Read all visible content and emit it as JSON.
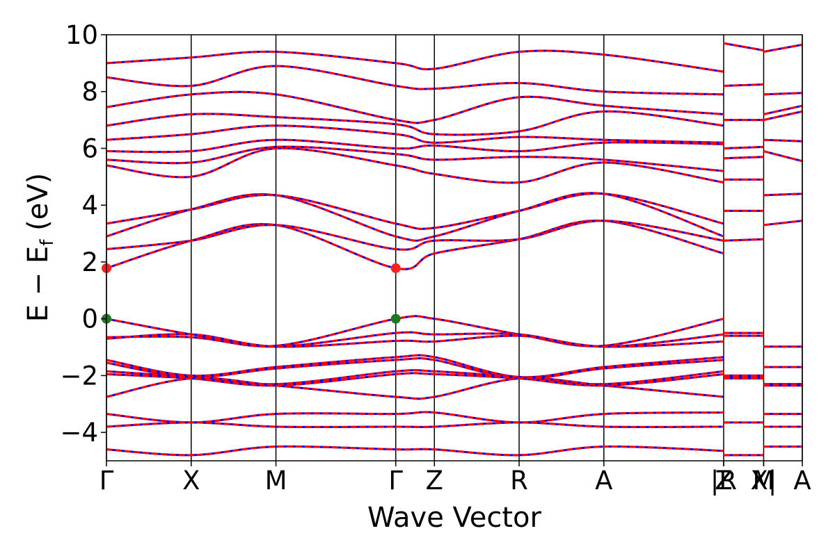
{
  "chart_data": {
    "type": "line",
    "xlabel": "Wave Vector",
    "ylabel_main": "E − E",
    "ylabel_sub": "f",
    "ylabel_unit": " (eV)",
    "ylim": [
      -5,
      10
    ],
    "yticks": [
      -4,
      -2,
      0,
      2,
      4,
      6,
      8,
      10
    ],
    "ytick_labels": [
      "−4",
      "−2",
      "0",
      "2",
      "4",
      "6",
      "8",
      "10"
    ],
    "grid": false,
    "legend": "none",
    "kpath": [
      {
        "label": "Γ",
        "x": 0.0
      },
      {
        "label": "X",
        "x": 0.5
      },
      {
        "label": "M",
        "x": 1.0
      },
      {
        "label": "Γ",
        "x": 1.707
      },
      {
        "label": "Z",
        "x": 1.935
      },
      {
        "label": "R",
        "x": 2.435
      },
      {
        "label": "A",
        "x": 2.935
      },
      {
        "label": "Z",
        "x": 3.642
      },
      {
        "label": "|R",
        "x": 3.642
      },
      {
        "label": "X|",
        "x": 3.878
      },
      {
        "label": "M",
        "x": 3.878
      },
      {
        "label": "A",
        "x": 4.106
      }
    ],
    "segments": [
      [
        0.0,
        3.642
      ],
      [
        3.642,
        3.878
      ],
      [
        3.878,
        4.106
      ]
    ],
    "band_colors": {
      "red": "#ff0000",
      "blue": "#0000ff",
      "vertical": "#000000"
    },
    "cbm": [
      {
        "x": 0.0,
        "y": 1.78
      },
      {
        "x": 1.707,
        "y": 1.78
      }
    ],
    "vbm": [
      {
        "x": 0.0,
        "y": 0.0
      },
      {
        "x": 1.707,
        "y": 0.0
      }
    ],
    "marker_colors": {
      "cbm": "#ff2020",
      "vbm": "#1f7a1f"
    },
    "series": [
      {
        "x": [
          0.0,
          0.5,
          1.0,
          1.707,
          1.935,
          2.435,
          2.935,
          3.642
        ],
        "values": [
          0.0,
          -0.55,
          -0.95,
          0.0,
          0.0,
          -0.55,
          -0.95,
          0.0
        ]
      },
      {
        "x": [
          0.0,
          0.5,
          1.0,
          1.707,
          1.935,
          2.435,
          2.935,
          3.642
        ],
        "values": [
          -0.65,
          -0.65,
          -0.98,
          -0.5,
          -0.55,
          -0.55,
          -0.98,
          -0.55
        ]
      },
      {
        "x": [
          0.0,
          0.5,
          1.0,
          1.707,
          1.935,
          2.435,
          2.935,
          3.642
        ],
        "values": [
          -0.7,
          -0.55,
          -0.98,
          -0.78,
          -0.8,
          -0.6,
          -0.98,
          -0.8
        ]
      },
      {
        "x": [
          0.0,
          0.5,
          1.0,
          1.707,
          1.935,
          2.435,
          2.935,
          3.642
        ],
        "values": [
          -1.45,
          -2.0,
          -1.7,
          -1.35,
          -1.35,
          -2.05,
          -1.7,
          -1.35
        ]
      },
      {
        "x": [
          0.0,
          0.5,
          1.0,
          1.707,
          1.935,
          2.435,
          2.935,
          3.642
        ],
        "values": [
          -1.55,
          -2.05,
          -1.75,
          -1.45,
          -1.45,
          -2.1,
          -1.75,
          -1.45
        ]
      },
      {
        "x": [
          0.0,
          0.5,
          1.0,
          1.707,
          1.935,
          2.435,
          2.935,
          3.642
        ],
        "values": [
          -1.85,
          -2.05,
          -2.3,
          -1.85,
          -1.85,
          -2.05,
          -2.3,
          -1.85
        ]
      },
      {
        "x": [
          0.0,
          0.5,
          1.0,
          1.707,
          1.935,
          2.435,
          2.935,
          3.642
        ],
        "values": [
          -1.95,
          -2.1,
          -2.35,
          -1.95,
          -1.95,
          -2.1,
          -2.35,
          -1.95
        ]
      },
      {
        "x": [
          0.0,
          0.5,
          1.0,
          1.707,
          1.935,
          2.435,
          2.935,
          3.642
        ],
        "values": [
          -2.75,
          -2.1,
          -2.35,
          -2.75,
          -2.75,
          -2.1,
          -2.35,
          -2.75
        ]
      },
      {
        "x": [
          0.0,
          0.5,
          1.0,
          1.707,
          1.935,
          2.435,
          2.935,
          3.642
        ],
        "values": [
          -3.35,
          -3.65,
          -3.35,
          -3.35,
          -3.3,
          -3.65,
          -3.35,
          -3.3
        ]
      },
      {
        "x": [
          0.0,
          0.5,
          1.0,
          1.707,
          1.935,
          2.435,
          2.935,
          3.642
        ],
        "values": [
          -3.8,
          -3.65,
          -3.8,
          -3.8,
          -3.8,
          -3.65,
          -3.8,
          -3.8
        ]
      },
      {
        "x": [
          0.0,
          0.5,
          1.0,
          1.707,
          1.935,
          2.435,
          2.935,
          3.642
        ],
        "values": [
          -4.6,
          -4.8,
          -4.5,
          -4.6,
          -4.6,
          -4.8,
          -4.5,
          -4.65
        ]
      },
      {
        "x": [
          0.0,
          0.5,
          1.0,
          1.707,
          1.935,
          2.435,
          2.935,
          3.642
        ],
        "values": [
          1.78,
          2.75,
          3.3,
          1.78,
          2.3,
          2.8,
          3.45,
          2.3
        ]
      },
      {
        "x": [
          0.0,
          0.5,
          1.0,
          1.707,
          1.935,
          2.435,
          2.935,
          3.642
        ],
        "values": [
          2.45,
          2.75,
          3.3,
          2.45,
          2.75,
          2.8,
          3.45,
          2.75
        ]
      },
      {
        "x": [
          0.0,
          0.5,
          1.0,
          1.707,
          1.935,
          2.435,
          2.935,
          3.642
        ],
        "values": [
          2.9,
          3.85,
          4.35,
          2.9,
          2.9,
          3.8,
          4.4,
          2.9
        ]
      },
      {
        "x": [
          0.0,
          0.5,
          1.0,
          1.707,
          1.935,
          2.435,
          2.935,
          3.642
        ],
        "values": [
          3.35,
          3.85,
          4.35,
          3.35,
          3.2,
          3.8,
          4.4,
          3.35
        ]
      },
      {
        "x": [
          0.0,
          0.5,
          1.0,
          1.707,
          1.935,
          2.435,
          2.935,
          3.642
        ],
        "values": [
          5.4,
          5.0,
          6.0,
          5.4,
          5.1,
          4.8,
          5.5,
          4.8
        ]
      },
      {
        "x": [
          0.0,
          0.5,
          1.0,
          1.707,
          1.935,
          2.435,
          2.935,
          3.642
        ],
        "values": [
          5.6,
          5.5,
          6.05,
          5.8,
          5.6,
          5.7,
          5.6,
          5.2
        ]
      },
      {
        "x": [
          0.0,
          0.5,
          1.0,
          1.707,
          1.935,
          2.435,
          2.935,
          3.642
        ],
        "values": [
          5.9,
          5.9,
          6.3,
          6.0,
          6.1,
          5.9,
          6.2,
          6.15
        ]
      },
      {
        "x": [
          0.0,
          0.5,
          1.0,
          1.707,
          1.935,
          2.435,
          2.935,
          3.642
        ],
        "values": [
          6.3,
          6.5,
          6.8,
          6.5,
          6.2,
          6.4,
          6.3,
          6.2
        ]
      },
      {
        "x": [
          0.0,
          0.5,
          1.0,
          1.707,
          1.935,
          2.435,
          2.935,
          3.642
        ],
        "values": [
          6.8,
          7.2,
          7.1,
          6.85,
          6.5,
          6.6,
          7.3,
          6.8
        ]
      },
      {
        "x": [
          0.0,
          0.5,
          1.0,
          1.707,
          1.935,
          2.435,
          2.935,
          3.642
        ],
        "values": [
          7.45,
          7.9,
          7.9,
          7.0,
          7.0,
          7.8,
          7.5,
          7.2
        ]
      },
      {
        "x": [
          0.0,
          0.5,
          1.0,
          1.707,
          1.935,
          2.435,
          2.935,
          3.642
        ],
        "values": [
          8.5,
          8.2,
          8.9,
          8.2,
          8.1,
          8.3,
          8.0,
          7.9
        ]
      },
      {
        "x": [
          0.0,
          0.5,
          1.0,
          1.707,
          1.935,
          2.435,
          2.935,
          3.642
        ],
        "values": [
          9.0,
          9.2,
          9.4,
          9.0,
          8.8,
          9.4,
          9.3,
          8.7
        ]
      },
      {
        "x": [
          3.642,
          3.878
        ],
        "values": [
          -0.5,
          -0.5
        ]
      },
      {
        "x": [
          3.642,
          3.878
        ],
        "values": [
          -0.6,
          -0.6
        ]
      },
      {
        "x": [
          3.642,
          3.878
        ],
        "values": [
          -2.0,
          -2.0
        ]
      },
      {
        "x": [
          3.642,
          3.878
        ],
        "values": [
          -2.05,
          -2.05
        ]
      },
      {
        "x": [
          3.642,
          3.878
        ],
        "values": [
          -2.1,
          -2.1
        ]
      },
      {
        "x": [
          3.642,
          3.878
        ],
        "values": [
          -3.65,
          -3.65
        ]
      },
      {
        "x": [
          3.642,
          3.878
        ],
        "values": [
          -4.8,
          -4.8
        ]
      },
      {
        "x": [
          3.642,
          3.878
        ],
        "values": [
          2.75,
          2.8
        ]
      },
      {
        "x": [
          3.642,
          3.878
        ],
        "values": [
          3.8,
          3.8
        ]
      },
      {
        "x": [
          3.642,
          3.878
        ],
        "values": [
          4.9,
          4.9
        ]
      },
      {
        "x": [
          3.642,
          3.878
        ],
        "values": [
          5.65,
          5.7
        ]
      },
      {
        "x": [
          3.642,
          3.878
        ],
        "values": [
          6.0,
          6.05
        ]
      },
      {
        "x": [
          3.642,
          3.878
        ],
        "values": [
          7.0,
          7.0
        ]
      },
      {
        "x": [
          3.642,
          3.878
        ],
        "values": [
          8.2,
          8.25
        ]
      },
      {
        "x": [
          3.642,
          3.878
        ],
        "values": [
          9.7,
          9.45
        ]
      },
      {
        "x": [
          3.878,
          4.106
        ],
        "values": [
          -0.98,
          -0.98
        ]
      },
      {
        "x": [
          3.878,
          4.106
        ],
        "values": [
          -1.7,
          -1.7
        ]
      },
      {
        "x": [
          3.878,
          4.106
        ],
        "values": [
          -2.3,
          -2.3
        ]
      },
      {
        "x": [
          3.878,
          4.106
        ],
        "values": [
          -2.35,
          -2.35
        ]
      },
      {
        "x": [
          3.878,
          4.106
        ],
        "values": [
          -3.35,
          -3.35
        ]
      },
      {
        "x": [
          3.878,
          4.106
        ],
        "values": [
          -3.8,
          -3.8
        ]
      },
      {
        "x": [
          3.878,
          4.106
        ],
        "values": [
          -4.5,
          -4.5
        ]
      },
      {
        "x": [
          3.878,
          4.106
        ],
        "values": [
          3.3,
          3.45
        ]
      },
      {
        "x": [
          3.878,
          4.106
        ],
        "values": [
          4.35,
          4.4
        ]
      },
      {
        "x": [
          3.878,
          4.106
        ],
        "values": [
          5.9,
          5.55
        ]
      },
      {
        "x": [
          3.878,
          4.106
        ],
        "values": [
          6.3,
          6.25
        ]
      },
      {
        "x": [
          3.878,
          4.106
        ],
        "values": [
          7.0,
          7.3
        ]
      },
      {
        "x": [
          3.878,
          4.106
        ],
        "values": [
          7.2,
          7.5
        ]
      },
      {
        "x": [
          3.878,
          4.106
        ],
        "values": [
          7.9,
          7.95
        ]
      },
      {
        "x": [
          3.878,
          4.106
        ],
        "values": [
          9.4,
          9.65
        ]
      }
    ]
  }
}
